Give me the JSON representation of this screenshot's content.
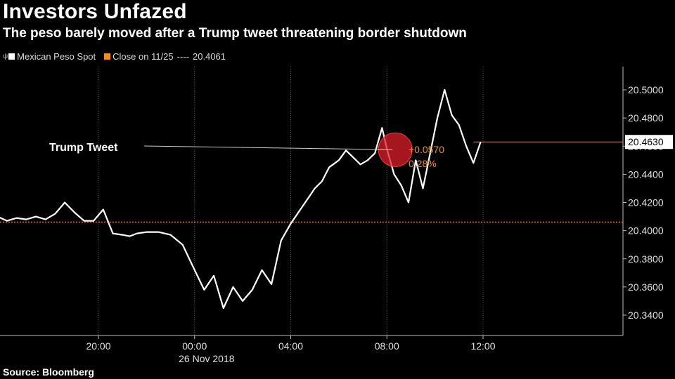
{
  "title": "Investors Unfazed",
  "subtitle": "The peso barely moved after a Trump tweet threatening border shutdown",
  "legend": {
    "glyph": "ψ",
    "series_label": "Mexican Peso Spot",
    "close_label": "Close on 11/25",
    "close_sep": "----",
    "close_value": "20.4061"
  },
  "colors": {
    "series": "#ffffff",
    "close": "#f28c28",
    "background": "#000000",
    "grid": "#5a5a5a"
  },
  "annotation": {
    "label": "Trump Tweet",
    "change": "+0.0570",
    "change_pct": "0.28%"
  },
  "last_price_label": "20.4630",
  "source": "Source: Bloomberg",
  "chart_data": {
    "type": "line",
    "ylim": [
      20.33,
      20.51
    ],
    "y_ticks": [
      "20.3400",
      "20.3600",
      "20.3800",
      "20.4000",
      "20.4200",
      "20.4400",
      "20.4600",
      "20.4800",
      "20.5000"
    ],
    "x_ticks": [
      "20:00",
      "00:00",
      "04:00",
      "08:00",
      "12:00"
    ],
    "x_date_label": "26 Nov 2018",
    "close_level": 20.4061,
    "last_value": 20.463,
    "series": [
      {
        "x": [
          15.0,
          15.4,
          15.8,
          16.2,
          16.6,
          17.0,
          17.4,
          17.8,
          18.2,
          18.6,
          19.0,
          19.4,
          19.8,
          20.2,
          20.6,
          21.0,
          21.3,
          21.6,
          22.0,
          22.5,
          23.0,
          23.5,
          24.0,
          24.4,
          24.8,
          25.2,
          25.6,
          26.0,
          26.4,
          26.8,
          27.2,
          27.6,
          28.0,
          28.4,
          28.8,
          29.0,
          29.3,
          29.6,
          30.0,
          30.3,
          30.6,
          30.9,
          31.2,
          31.5,
          31.8,
          32.0,
          32.3,
          32.6,
          32.9,
          33.2,
          33.5,
          33.8,
          34.1,
          34.4,
          34.7,
          35.0,
          35.3,
          35.6,
          35.9
        ],
        "y": [
          20.407,
          20.408,
          20.41,
          20.407,
          20.409,
          20.408,
          20.41,
          20.408,
          20.412,
          20.42,
          20.413,
          20.407,
          20.407,
          20.415,
          20.398,
          20.397,
          20.396,
          20.398,
          20.399,
          20.399,
          20.397,
          20.39,
          20.372,
          20.358,
          20.368,
          20.345,
          20.36,
          20.35,
          20.358,
          20.372,
          20.362,
          20.393,
          20.405,
          20.415,
          20.425,
          20.43,
          20.435,
          20.445,
          20.45,
          20.457,
          20.452,
          20.447,
          20.45,
          20.455,
          20.473,
          20.458,
          20.44,
          20.432,
          20.42,
          20.45,
          20.43,
          20.455,
          20.48,
          20.5,
          20.482,
          20.475,
          20.46,
          20.448,
          20.463
        ]
      }
    ]
  }
}
